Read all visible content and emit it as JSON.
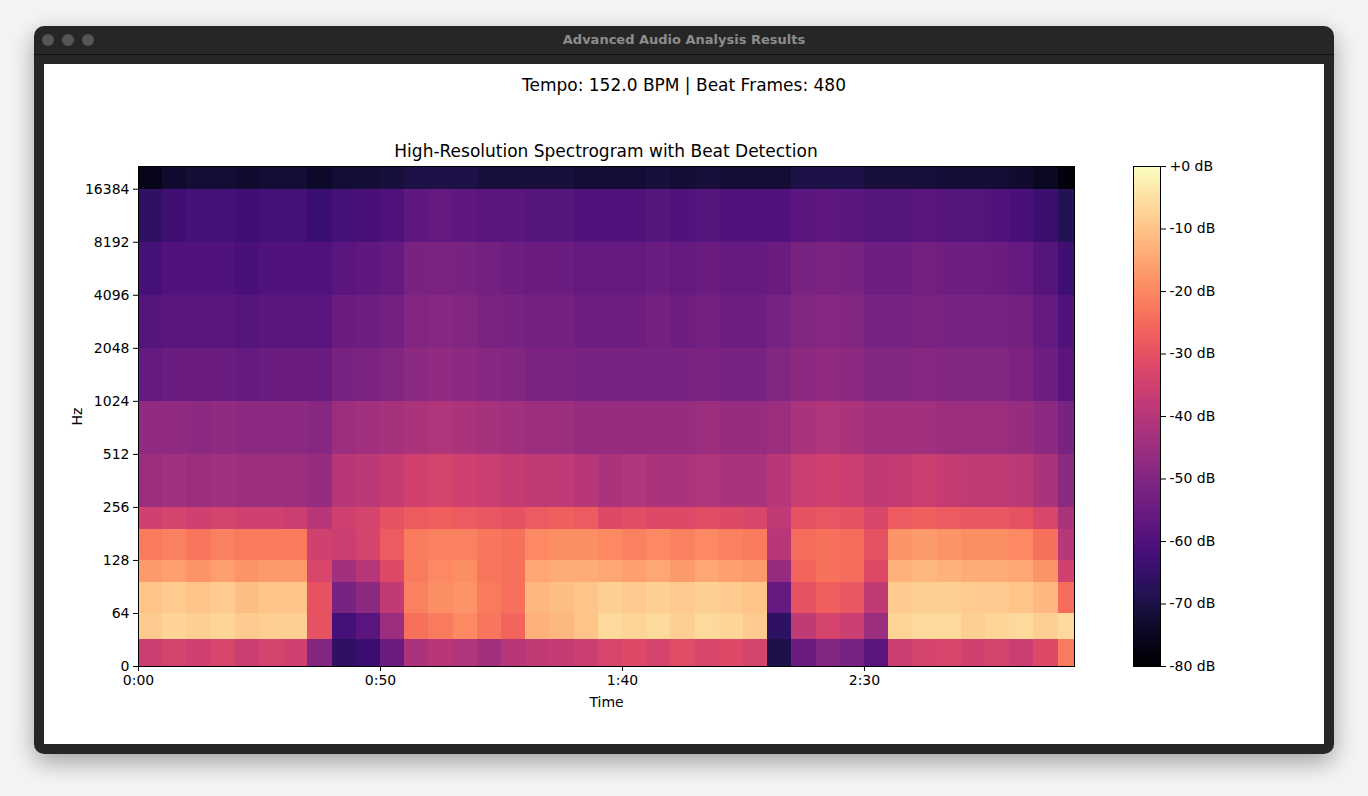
{
  "window": {
    "title": "Advanced Audio Analysis Results"
  },
  "chart_data": {
    "type": "heatmap",
    "suptitle": "Tempo: 152.0 BPM | Beat Frames: 480",
    "title": "High-Resolution Spectrogram with Beat Detection",
    "x_label": "Time",
    "y_label": "Hz",
    "log": "y",
    "color": "magma",
    "xlim": [
      0,
      193.4
    ],
    "xticks": [
      {
        "value": 0,
        "label": "0:00"
      },
      {
        "value": 50,
        "label": "0:50"
      },
      {
        "value": 100,
        "label": "1:40"
      },
      {
        "value": 150,
        "label": "2:30"
      }
    ],
    "ylim": [
      0,
      22050
    ],
    "yticks": [
      0,
      64,
      128,
      256,
      512,
      1024,
      2048,
      4096,
      8192,
      16384
    ],
    "x_bins": [
      0,
      5,
      10,
      15,
      20,
      25,
      30,
      35,
      40,
      45,
      50,
      55,
      60,
      65,
      70,
      75,
      80,
      85,
      90,
      95,
      100,
      105,
      110,
      115,
      120,
      125,
      130,
      135,
      140,
      145,
      150,
      155,
      160,
      165,
      170,
      175,
      180,
      185,
      190,
      193.4
    ],
    "y_bins": [
      0,
      32,
      64,
      96,
      128,
      192,
      256,
      512,
      1024,
      2048,
      4096,
      8192,
      16384,
      22050
    ],
    "cells": [
      [
        -36,
        -34,
        -35,
        -33,
        -36,
        -34,
        -35,
        -50,
        -66,
        -64,
        -55,
        -42,
        -40,
        -41,
        -44,
        -40,
        -38,
        -37,
        -36,
        -33,
        -32,
        -34,
        -31,
        -33,
        -32,
        -34,
        -70,
        -55,
        -50,
        -52,
        -58,
        -36,
        -34,
        -33,
        -35,
        -34,
        -36,
        -32,
        -22
      ],
      [
        -9,
        -7,
        -8,
        -7,
        -9,
        -8,
        -8,
        -30,
        -62,
        -58,
        -45,
        -24,
        -22,
        -20,
        -23,
        -26,
        -13,
        -12,
        -10,
        -6,
        -7,
        -6,
        -8,
        -6,
        -7,
        -9,
        -66,
        -38,
        -34,
        -36,
        -45,
        -7,
        -6,
        -6,
        -8,
        -7,
        -6,
        -8,
        -6
      ],
      [
        -10,
        -9,
        -10,
        -9,
        -11,
        -10,
        -10,
        -30,
        -52,
        -48,
        -38,
        -21,
        -19,
        -18,
        -22,
        -24,
        -12,
        -11,
        -10,
        -8,
        -9,
        -8,
        -9,
        -8,
        -9,
        -10,
        -56,
        -30,
        -27,
        -29,
        -38,
        -9,
        -8,
        -8,
        -9,
        -9,
        -10,
        -12,
        -25
      ],
      [
        -17,
        -16,
        -18,
        -16,
        -18,
        -17,
        -17,
        -33,
        -44,
        -40,
        -32,
        -22,
        -20,
        -19,
        -23,
        -24,
        -15,
        -14,
        -14,
        -15,
        -16,
        -15,
        -17,
        -15,
        -16,
        -17,
        -46,
        -26,
        -24,
        -25,
        -32,
        -13,
        -12,
        -13,
        -14,
        -14,
        -15,
        -18,
        -35
      ],
      [
        -22,
        -21,
        -23,
        -21,
        -22,
        -22,
        -22,
        -35,
        -36,
        -34,
        -28,
        -22,
        -21,
        -21,
        -23,
        -24,
        -20,
        -19,
        -19,
        -20,
        -21,
        -20,
        -21,
        -20,
        -21,
        -22,
        -40,
        -25,
        -24,
        -25,
        -30,
        -18,
        -17,
        -18,
        -19,
        -19,
        -20,
        -24,
        -40
      ],
      [
        -35,
        -34,
        -35,
        -34,
        -35,
        -35,
        -36,
        -40,
        -35,
        -34,
        -30,
        -28,
        -27,
        -28,
        -29,
        -30,
        -28,
        -27,
        -28,
        -32,
        -31,
        -32,
        -32,
        -31,
        -32,
        -33,
        -38,
        -30,
        -29,
        -30,
        -33,
        -28,
        -27,
        -28,
        -29,
        -29,
        -30,
        -33,
        -42
      ],
      [
        -45,
        -44,
        -45,
        -44,
        -45,
        -45,
        -45,
        -46,
        -40,
        -39,
        -37,
        -35,
        -34,
        -35,
        -36,
        -37,
        -38,
        -38,
        -40,
        -42,
        -41,
        -42,
        -42,
        -41,
        -42,
        -42,
        -40,
        -36,
        -35,
        -36,
        -38,
        -37,
        -36,
        -37,
        -38,
        -38,
        -39,
        -42,
        -48
      ],
      [
        -47,
        -47,
        -48,
        -47,
        -48,
        -48,
        -48,
        -49,
        -45,
        -44,
        -43,
        -42,
        -41,
        -42,
        -43,
        -44,
        -45,
        -45,
        -46,
        -46,
        -46,
        -46,
        -46,
        -45,
        -46,
        -46,
        -45,
        -42,
        -41,
        -42,
        -44,
        -44,
        -44,
        -45,
        -45,
        -45,
        -46,
        -48,
        -52
      ],
      [
        -56,
        -55,
        -55,
        -55,
        -56,
        -55,
        -55,
        -55,
        -52,
        -51,
        -50,
        -48,
        -47,
        -48,
        -49,
        -50,
        -51,
        -51,
        -52,
        -52,
        -52,
        -52,
        -52,
        -51,
        -52,
        -52,
        -50,
        -48,
        -47,
        -48,
        -50,
        -50,
        -49,
        -50,
        -50,
        -50,
        -51,
        -54,
        -58
      ],
      [
        -59,
        -58,
        -58,
        -58,
        -59,
        -58,
        -58,
        -58,
        -55,
        -54,
        -53,
        -50,
        -49,
        -50,
        -51,
        -52,
        -53,
        -53,
        -54,
        -54,
        -54,
        -53,
        -54,
        -53,
        -54,
        -54,
        -52,
        -50,
        -49,
        -50,
        -52,
        -52,
        -51,
        -52,
        -52,
        -52,
        -53,
        -56,
        -60
      ],
      [
        -62,
        -60,
        -60,
        -60,
        -61,
        -60,
        -60,
        -60,
        -58,
        -57,
        -56,
        -52,
        -51,
        -52,
        -53,
        -54,
        -55,
        -55,
        -56,
        -56,
        -56,
        -55,
        -56,
        -55,
        -56,
        -56,
        -55,
        -52,
        -51,
        -52,
        -54,
        -54,
        -53,
        -54,
        -54,
        -55,
        -56,
        -59,
        -63
      ],
      [
        -66,
        -63,
        -62,
        -62,
        -63,
        -62,
        -62,
        -64,
        -62,
        -61,
        -60,
        -57,
        -56,
        -57,
        -58,
        -58,
        -59,
        -59,
        -60,
        -60,
        -60,
        -59,
        -60,
        -59,
        -60,
        -60,
        -60,
        -58,
        -57,
        -58,
        -59,
        -59,
        -58,
        -59,
        -59,
        -60,
        -61,
        -64,
        -68
      ],
      [
        -76,
        -73,
        -72,
        -72,
        -73,
        -72,
        -72,
        -74,
        -72,
        -72,
        -71,
        -70,
        -70,
        -70,
        -71,
        -71,
        -71,
        -71,
        -72,
        -72,
        -72,
        -71,
        -72,
        -71,
        -72,
        -72,
        -72,
        -70,
        -70,
        -70,
        -71,
        -71,
        -71,
        -72,
        -72,
        -72,
        -73,
        -75,
        -78
      ]
    ],
    "colorbar": {
      "range": [
        -80,
        0
      ],
      "ticks": [
        {
          "value": 0,
          "label": "+0 dB"
        },
        {
          "value": -10,
          "label": "-10 dB"
        },
        {
          "value": -20,
          "label": "-20 dB"
        },
        {
          "value": -30,
          "label": "-30 dB"
        },
        {
          "value": -40,
          "label": "-40 dB"
        },
        {
          "value": -50,
          "label": "-50 dB"
        },
        {
          "value": -60,
          "label": "-60 dB"
        },
        {
          "value": -70,
          "label": "-70 dB"
        },
        {
          "value": -80,
          "label": "-80 dB"
        }
      ]
    }
  }
}
